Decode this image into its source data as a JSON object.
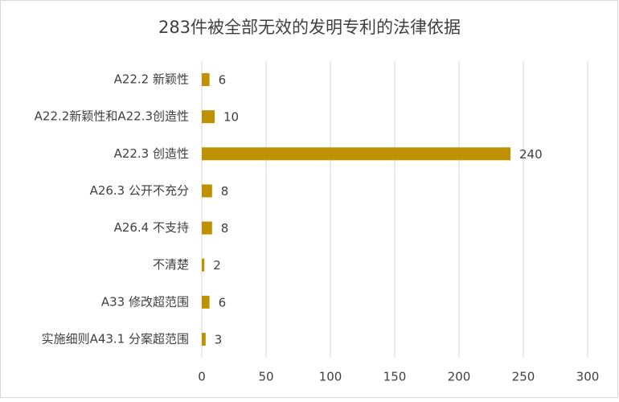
{
  "chart_data": {
    "type": "hbar",
    "title": "283件被全部无效的发明专利的法律依据",
    "categories": [
      "A22.2 新颖性",
      "A22.2新颖性和A22.3创造性",
      "A22.3 创造性",
      "A26.3 公开不充分",
      "A26.4 不支持",
      "不清楚",
      "A33 修改超范围",
      "实施细则A43.1 分案超范围"
    ],
    "values": [
      6,
      10,
      240,
      8,
      8,
      2,
      6,
      3
    ],
    "color": "#bf9000",
    "xlim": [
      0,
      300
    ],
    "xticks": [
      0,
      50,
      100,
      150,
      200,
      250,
      300
    ],
    "grid": true
  }
}
